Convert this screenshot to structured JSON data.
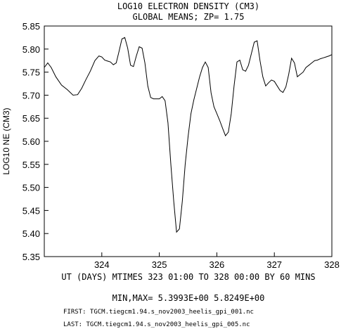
{
  "chart_data": {
    "type": "line",
    "title": "LOG10 ELECTRON DENSITY (CM3)",
    "subtitle": "GLOBAL MEANS; ZP=  1.75",
    "ylabel": "LOG10 NE (CM3)",
    "xlabel": "UT (DAYS) MTIMES 323 01:00 TO 328 00:00 BY    60 MINS",
    "xlim": [
      323.0,
      328.0
    ],
    "ylim": [
      5.35,
      5.85
    ],
    "x_ticks": [
      324,
      325,
      326,
      327,
      328
    ],
    "y_ticks": [
      "5.35",
      "5.40",
      "5.45",
      "5.50",
      "5.55",
      "5.60",
      "5.65",
      "5.70",
      "5.75",
      "5.80",
      "5.85"
    ],
    "minmax_text": "MIN,MAX=  5.3993E+00  5.8249E+00",
    "first_text": "FIRST: TGCM.tiegcm1.94.s_nov2003_heelis_gpi_001.nc",
    "last_text": "LAST:  TGCM.tiegcm1.94.s_nov2003_heelis_gpi_005.nc",
    "series": [
      {
        "x": [
          323.0,
          323.06,
          323.12,
          323.2,
          323.3,
          323.4,
          323.5,
          323.58,
          323.65,
          323.72,
          323.8,
          323.88,
          323.95,
          324.0,
          324.05,
          324.1,
          324.15,
          324.2,
          324.25,
          324.3,
          324.35,
          324.4,
          324.45,
          324.5,
          324.55,
          324.6,
          324.65,
          324.7,
          324.75,
          324.8,
          324.85,
          324.9,
          324.95,
          325.0,
          325.05,
          325.1,
          325.15,
          325.2,
          325.25,
          325.3,
          325.35,
          325.4,
          325.45,
          325.5,
          325.55,
          325.6,
          325.65,
          325.7,
          325.75,
          325.8,
          325.85,
          325.9,
          325.95,
          326.0,
          326.05,
          326.1,
          326.15,
          326.2,
          326.25,
          326.3,
          326.35,
          326.4,
          326.45,
          326.5,
          326.55,
          326.6,
          326.65,
          326.7,
          326.75,
          326.8,
          326.85,
          326.9,
          326.95,
          327.0,
          327.05,
          327.1,
          327.15,
          327.2,
          327.25,
          327.3,
          327.35,
          327.4,
          327.45,
          327.5,
          327.55,
          327.6,
          327.65,
          327.7,
          327.75,
          327.8,
          327.85,
          327.9,
          327.95,
          328.0
        ],
        "y": [
          5.76,
          5.77,
          5.76,
          5.74,
          5.722,
          5.712,
          5.7,
          5.701,
          5.715,
          5.733,
          5.752,
          5.775,
          5.785,
          5.783,
          5.776,
          5.774,
          5.772,
          5.766,
          5.77,
          5.795,
          5.822,
          5.825,
          5.802,
          5.765,
          5.762,
          5.785,
          5.805,
          5.802,
          5.77,
          5.72,
          5.695,
          5.692,
          5.692,
          5.692,
          5.697,
          5.688,
          5.64,
          5.55,
          5.47,
          5.403,
          5.41,
          5.47,
          5.55,
          5.61,
          5.66,
          5.69,
          5.715,
          5.74,
          5.76,
          5.772,
          5.76,
          5.705,
          5.675,
          5.66,
          5.645,
          5.628,
          5.612,
          5.62,
          5.66,
          5.72,
          5.772,
          5.776,
          5.755,
          5.752,
          5.765,
          5.79,
          5.815,
          5.818,
          5.775,
          5.74,
          5.72,
          5.727,
          5.733,
          5.73,
          5.72,
          5.71,
          5.706,
          5.718,
          5.745,
          5.78,
          5.77,
          5.74,
          5.745,
          5.75,
          5.76,
          5.765,
          5.77,
          5.775,
          5.776,
          5.779,
          5.781,
          5.783,
          5.785,
          5.788
        ]
      }
    ]
  }
}
